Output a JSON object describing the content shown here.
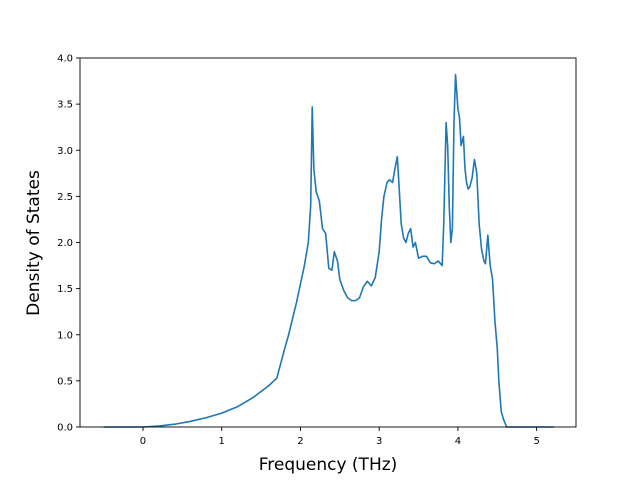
{
  "chart_data": {
    "type": "line",
    "title": "",
    "xlabel": "Frequency (THz)",
    "ylabel": "Density of States",
    "xlim": [
      -0.8,
      5.5
    ],
    "ylim": [
      0.0,
      4.0
    ],
    "xticks": [
      0,
      1,
      2,
      3,
      4,
      5
    ],
    "xtick_labels": [
      "0",
      "1",
      "2",
      "3",
      "4",
      "5"
    ],
    "yticks": [
      0.0,
      0.5,
      1.0,
      1.5,
      2.0,
      2.5,
      3.0,
      3.5,
      4.0
    ],
    "ytick_labels": [
      "0.0",
      "0.5",
      "1.0",
      "1.5",
      "2.0",
      "2.5",
      "3.0",
      "3.5",
      "4.0"
    ],
    "grid": false,
    "legend": "none",
    "series": [
      {
        "color": "#1f77b4",
        "x": [
          -0.5,
          0.0,
          0.2,
          0.4,
          0.6,
          0.8,
          1.0,
          1.2,
          1.4,
          1.6,
          1.7,
          1.8,
          1.85,
          1.95,
          2.0,
          2.05,
          2.1,
          2.13,
          2.15,
          2.17,
          2.2,
          2.24,
          2.28,
          2.32,
          2.36,
          2.4,
          2.43,
          2.47,
          2.5,
          2.55,
          2.6,
          2.65,
          2.7,
          2.75,
          2.8,
          2.85,
          2.9,
          2.95,
          3.0,
          3.03,
          3.06,
          3.1,
          3.13,
          3.17,
          3.2,
          3.23,
          3.25,
          3.28,
          3.31,
          3.34,
          3.37,
          3.4,
          3.43,
          3.46,
          3.5,
          3.55,
          3.6,
          3.65,
          3.7,
          3.75,
          3.8,
          3.82,
          3.85,
          3.87,
          3.89,
          3.91,
          3.93,
          3.95,
          3.97,
          4.0,
          4.02,
          4.04,
          4.07,
          4.09,
          4.11,
          4.13,
          4.15,
          4.18,
          4.21,
          4.24,
          4.27,
          4.3,
          4.33,
          4.35,
          4.38,
          4.41,
          4.44,
          4.47,
          4.5,
          4.52,
          4.55,
          4.58,
          4.62,
          4.66,
          4.7,
          4.73,
          4.75,
          4.8,
          5.0,
          5.22
        ],
        "y": [
          0.0,
          0.0,
          0.01,
          0.03,
          0.06,
          0.1,
          0.15,
          0.22,
          0.32,
          0.45,
          0.53,
          0.85,
          1.0,
          1.35,
          1.55,
          1.75,
          2.0,
          2.4,
          3.47,
          2.8,
          2.55,
          2.45,
          2.15,
          2.1,
          1.72,
          1.7,
          1.9,
          1.8,
          1.6,
          1.48,
          1.4,
          1.37,
          1.37,
          1.4,
          1.52,
          1.58,
          1.53,
          1.62,
          1.9,
          2.25,
          2.5,
          2.65,
          2.68,
          2.65,
          2.8,
          2.93,
          2.65,
          2.2,
          2.05,
          2.0,
          2.1,
          2.15,
          1.95,
          2.0,
          1.83,
          1.85,
          1.85,
          1.78,
          1.77,
          1.8,
          1.75,
          2.2,
          3.3,
          3.05,
          2.4,
          2.0,
          2.15,
          3.3,
          3.82,
          3.45,
          3.35,
          3.05,
          3.15,
          2.8,
          2.65,
          2.58,
          2.6,
          2.7,
          2.9,
          2.75,
          2.2,
          1.93,
          1.8,
          1.77,
          2.08,
          1.75,
          1.6,
          1.15,
          0.85,
          0.5,
          0.17,
          0.08,
          0.0,
          0.0,
          0.0,
          0.0,
          0.0,
          0.0,
          0.0,
          0.0
        ]
      }
    ]
  }
}
